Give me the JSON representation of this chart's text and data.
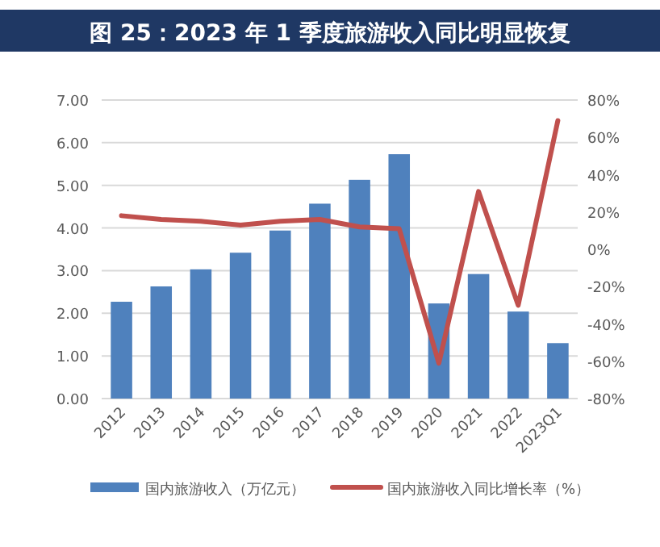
{
  "chart_data": {
    "type": "bar",
    "title": "图 25：2023 年 1 季度旅游收入同比明显恢复",
    "categories": [
      "2012",
      "2013",
      "2014",
      "2015",
      "2016",
      "2017",
      "2018",
      "2019",
      "2020",
      "2021",
      "2022",
      "2023Q1"
    ],
    "series": [
      {
        "name": "国内旅游收入（万亿元）",
        "color": "#4f81bd",
        "values": [
          2.27,
          2.63,
          3.03,
          3.42,
          3.94,
          4.57,
          5.13,
          5.73,
          2.23,
          2.92,
          2.04,
          1.3
        ]
      },
      {
        "name": "国内旅游收入同比增长率（%）",
        "type": "line",
        "axis": "y2",
        "color": "#c0504d",
        "values": [
          18,
          16,
          15,
          13,
          15,
          16,
          12,
          11,
          -61,
          31,
          -30,
          69
        ]
      }
    ],
    "ylim": [
      0,
      7
    ],
    "yticks": [
      {
        "value": 0,
        "label": "0.00"
      },
      {
        "value": 1,
        "label": "1.00"
      },
      {
        "value": 2,
        "label": "2.00"
      },
      {
        "value": 3,
        "label": "3.00"
      },
      {
        "value": 4,
        "label": "4.00"
      },
      {
        "value": 5,
        "label": "5.00"
      },
      {
        "value": 6,
        "label": "6.00"
      },
      {
        "value": 7,
        "label": "7.00"
      }
    ],
    "y2lim": [
      -80,
      80
    ],
    "y2ticks": [
      {
        "value": -80,
        "label": "-80%"
      },
      {
        "value": -60,
        "label": "-60%"
      },
      {
        "value": -40,
        "label": "-40%"
      },
      {
        "value": -20,
        "label": "-20%"
      },
      {
        "value": 0,
        "label": "0%"
      },
      {
        "value": 20,
        "label": "20%"
      },
      {
        "value": 40,
        "label": "40%"
      },
      {
        "value": 60,
        "label": "60%"
      },
      {
        "value": 80,
        "label": "80%"
      }
    ],
    "grid": "y",
    "legend": "bottom",
    "marker": "none",
    "line_style": "solid"
  }
}
